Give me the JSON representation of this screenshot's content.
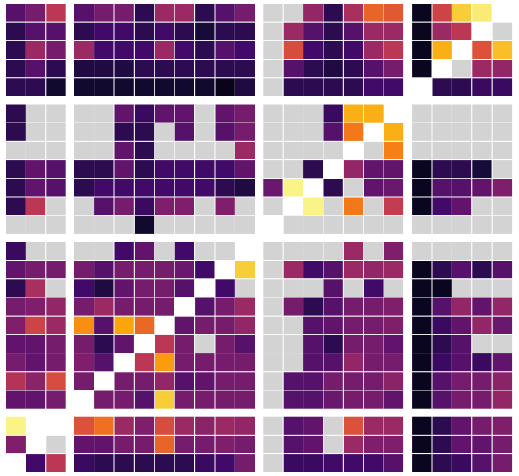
{
  "chart_data": {
    "type": "heatmap",
    "colormap": "inferno",
    "clim": [
      0,
      1
    ],
    "missing_color": "#d3d3d3",
    "row_groups": [
      5,
      7,
      9,
      3
    ],
    "col_groups": [
      3,
      9,
      7,
      5
    ],
    "masked": [
      [
        0,
        23
      ],
      [
        1,
        22
      ],
      [
        2,
        21
      ],
      [
        3,
        20
      ],
      [
        4,
        19
      ],
      [
        5,
        18
      ],
      [
        6,
        17
      ],
      [
        7,
        16
      ],
      [
        8,
        15
      ],
      [
        9,
        14
      ],
      [
        10,
        13
      ],
      [
        11,
        12
      ],
      [
        12,
        11
      ],
      [
        13,
        10
      ],
      [
        14,
        9
      ],
      [
        15,
        8
      ],
      [
        16,
        7
      ],
      [
        17,
        6
      ],
      [
        18,
        5
      ],
      [
        19,
        4
      ],
      [
        20,
        3
      ],
      [
        21,
        1
      ],
      [
        21,
        2
      ],
      [
        22,
        1
      ],
      [
        23,
        0
      ]
    ],
    "values": [
      [
        0.25,
        0.33,
        0.5,
        0.25,
        0.33,
        0.33,
        0.15,
        0.42,
        0.42,
        0.15,
        0.25,
        0.33,
        null,
        null,
        0.4,
        0.15,
        0.45,
        0.65,
        0.62,
        0.05,
        0.55,
        0.88,
        0.95,
        null
      ],
      [
        0.15,
        0.25,
        0.25,
        0.15,
        0.2,
        0.2,
        0.15,
        0.2,
        0.15,
        0.1,
        0.15,
        0.15,
        null,
        0.42,
        0.25,
        0.15,
        0.25,
        0.42,
        0.42,
        0.05,
        0.42,
        0.5,
        null,
        null
      ],
      [
        0.15,
        0.42,
        0.33,
        0.42,
        0.2,
        0.2,
        0.2,
        0.42,
        0.2,
        0.15,
        0.25,
        0.2,
        null,
        0.58,
        0.2,
        0.15,
        0.2,
        0.42,
        0.5,
        0.05,
        0.82,
        null,
        0.6,
        0.85
      ],
      [
        0.15,
        0.25,
        0.15,
        0.12,
        0.12,
        0.12,
        0.15,
        0.15,
        0.15,
        0.15,
        0.15,
        0.15,
        null,
        0.25,
        0.15,
        0.12,
        0.15,
        0.25,
        0.33,
        0.05,
        null,
        null,
        0.42,
        0.4
      ],
      [
        0.15,
        0.15,
        0.08,
        0.08,
        0.08,
        0.08,
        0.08,
        0.08,
        0.08,
        0.08,
        0.04,
        0.12,
        null,
        0.15,
        0.15,
        0.15,
        0.15,
        0.2,
        0.2,
        null,
        0.15,
        0.15,
        0.18,
        0.18
      ],
      [
        0.15,
        null,
        null,
        null,
        null,
        0.28,
        0.18,
        0.28,
        0.28,
        null,
        0.28,
        0.33,
        null,
        null,
        null,
        0.18,
        0.82,
        0.82,
        null,
        null,
        null,
        null,
        null,
        null
      ],
      [
        0.15,
        null,
        null,
        null,
        null,
        0.15,
        0.15,
        null,
        0.25,
        null,
        0.25,
        0.33,
        null,
        null,
        null,
        0.25,
        0.7,
        null,
        0.82,
        null,
        null,
        null,
        null,
        null
      ],
      [
        null,
        null,
        null,
        null,
        null,
        0.28,
        0.15,
        null,
        null,
        null,
        null,
        0.42,
        null,
        null,
        null,
        null,
        null,
        null,
        0.72,
        null,
        null,
        null,
        null,
        null
      ],
      [
        0.15,
        0.28,
        0.25,
        0.15,
        0.15,
        0.28,
        0.15,
        0.2,
        0.2,
        0.2,
        0.2,
        0.28,
        null,
        null,
        0.15,
        null,
        0.4,
        0.28,
        0.28,
        0.05,
        0.15,
        0.15,
        0.1,
        null
      ],
      [
        0.15,
        0.28,
        0.25,
        0.15,
        0.2,
        0.2,
        0.2,
        0.2,
        0.2,
        0.2,
        0.15,
        0.12,
        0.3,
        0.97,
        null,
        0.15,
        null,
        0.28,
        0.3,
        0.05,
        0.25,
        0.25,
        0.28,
        0.35
      ],
      [
        0.15,
        0.5,
        null,
        null,
        0.25,
        0.33,
        0.18,
        0.35,
        0.35,
        null,
        0.35,
        null,
        null,
        null,
        0.97,
        null,
        0.7,
        null,
        0.52,
        0.05,
        0.2,
        0.28,
        null,
        null
      ],
      [
        null,
        null,
        null,
        null,
        null,
        null,
        0.08,
        null,
        null,
        null,
        null,
        null,
        null,
        null,
        null,
        null,
        null,
        null,
        null,
        null,
        null,
        null,
        null,
        null
      ],
      [
        0.18,
        null,
        null,
        null,
        null,
        0.2,
        0.28,
        null,
        0.2,
        null,
        null,
        null,
        null,
        null,
        null,
        null,
        0.42,
        null,
        0.35,
        null,
        null,
        null,
        null,
        null
      ],
      [
        0.28,
        0.33,
        0.33,
        0.33,
        0.25,
        0.33,
        0.33,
        0.33,
        0.3,
        0.2,
        null,
        0.88,
        null,
        0.42,
        0.2,
        0.25,
        0.42,
        0.4,
        0.42,
        0.05,
        0.15,
        0.25,
        0.15,
        0.25
      ],
      [
        0.15,
        0.45,
        null,
        0.2,
        0.12,
        0.28,
        0.33,
        0.33,
        0.25,
        null,
        0.2,
        null,
        null,
        null,
        null,
        0.25,
        null,
        0.2,
        null,
        0.05,
        0.05,
        null,
        null,
        null
      ],
      [
        0.33,
        0.35,
        0.4,
        0.33,
        0.42,
        0.33,
        0.33,
        0.33,
        null,
        0.25,
        0.33,
        0.42,
        null,
        0.33,
        0.15,
        0.25,
        0.33,
        0.33,
        0.35,
        0.05,
        0.25,
        0.4,
        0.28,
        0.4
      ],
      [
        0.35,
        0.55,
        0.42,
        0.75,
        0.25,
        0.8,
        0.66,
        null,
        0.28,
        0.33,
        0.33,
        0.4,
        null,
        null,
        0.25,
        0.28,
        0.33,
        0.33,
        0.35,
        0.05,
        0.18,
        0.28,
        0.4,
        0.3
      ],
      [
        0.28,
        0.28,
        0.33,
        0.33,
        0.15,
        0.28,
        null,
        0.5,
        0.33,
        null,
        0.33,
        0.25,
        null,
        null,
        0.25,
        0.15,
        0.33,
        0.33,
        0.28,
        0.05,
        0.15,
        0.25,
        null,
        null
      ],
      [
        0.33,
        0.28,
        0.33,
        0.35,
        0.25,
        null,
        0.5,
        0.78,
        0.33,
        0.33,
        0.33,
        0.33,
        null,
        null,
        0.25,
        0.25,
        0.4,
        0.33,
        0.33,
        0.05,
        0.18,
        0.25,
        0.18,
        0.28
      ],
      [
        0.48,
        0.38,
        0.58,
        0.33,
        null,
        0.33,
        0.33,
        0.4,
        0.25,
        0.28,
        0.33,
        0.33,
        null,
        0.25,
        0.25,
        0.33,
        0.33,
        0.33,
        0.38,
        0.05,
        0.25,
        0.33,
        0.33,
        0.38
      ],
      [
        0.28,
        0.28,
        0.33,
        null,
        0.33,
        0.33,
        0.25,
        0.88,
        0.33,
        0.33,
        0.33,
        0.33,
        null,
        0.25,
        0.25,
        0.3,
        0.33,
        0.33,
        0.28,
        0.05,
        0.25,
        0.33,
        0.33,
        0.4
      ],
      [
        0.97,
        null,
        null,
        0.6,
        0.68,
        0.42,
        0.35,
        0.58,
        0.42,
        0.38,
        0.42,
        0.4,
        null,
        0.25,
        0.28,
        null,
        0.6,
        0.42,
        0.42,
        0.05,
        0.15,
        0.28,
        0.33,
        0.35
      ],
      [
        0.35,
        null,
        null,
        0.28,
        0.28,
        0.33,
        0.33,
        0.65,
        0.33,
        0.33,
        0.35,
        0.33,
        null,
        0.25,
        0.28,
        null,
        0.42,
        0.35,
        0.35,
        0.05,
        0.15,
        0.28,
        0.28,
        0.33
      ],
      [
        null,
        0.2,
        0.5,
        0.18,
        0.15,
        0.15,
        0.15,
        0.15,
        0.15,
        0.18,
        0.2,
        0.33,
        null,
        0.18,
        0.18,
        0.2,
        0.2,
        0.2,
        0.25,
        0.05,
        0.15,
        0.18,
        0.25,
        0.33
      ]
    ]
  }
}
